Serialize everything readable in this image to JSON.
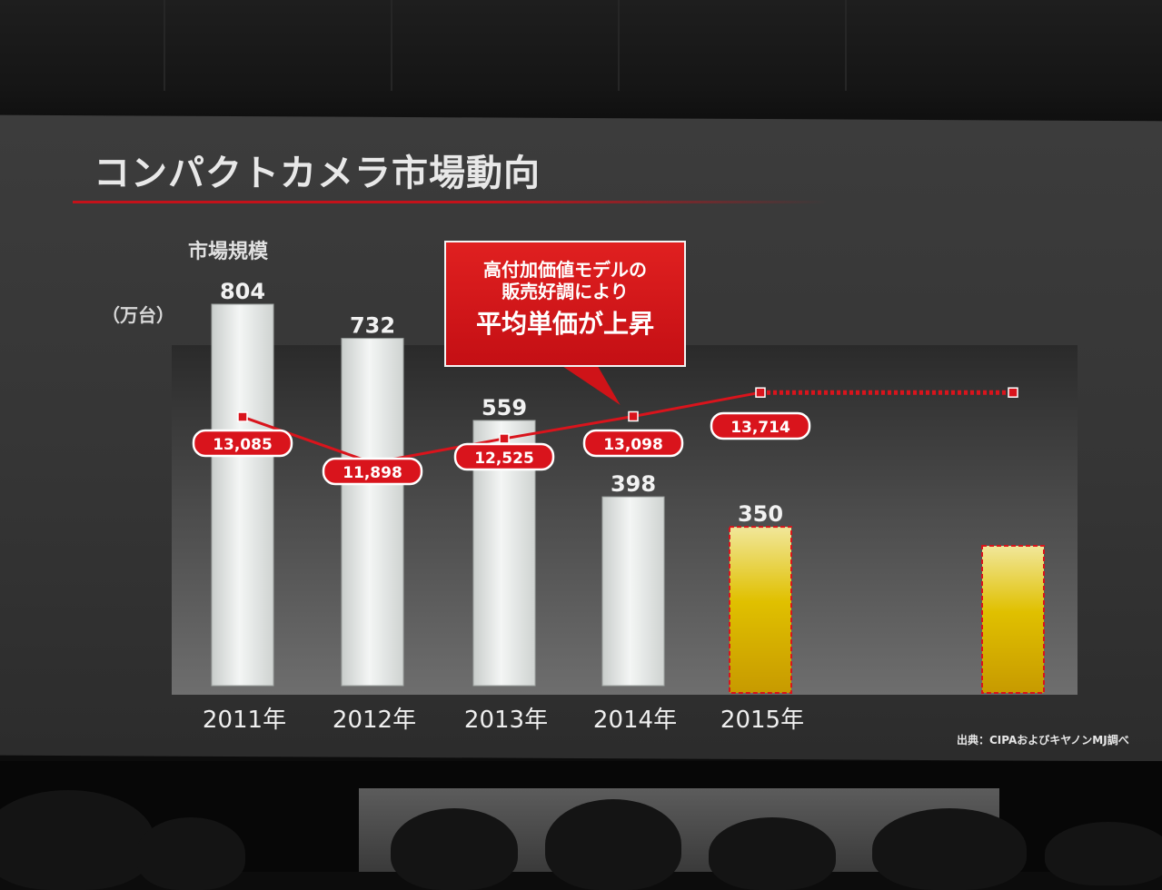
{
  "slide": {
    "title": "コンパクトカメラ市場動向",
    "y_label": "市場規模",
    "y_unit": "（万台）",
    "callout_line1": "高付加価値モデルの",
    "callout_line2": "販売好調により",
    "callout_line3": "平均単価が上昇",
    "source": "出典：CIPAおよびキヤノンMJ調べ"
  },
  "colors": {
    "background": "#353535",
    "bar_actual": "#e9ecea",
    "bar_forecast": "#d8b400",
    "accent_red": "#d9141c"
  },
  "chart_data": {
    "type": "bar",
    "categories": [
      "2011年",
      "2012年",
      "2013年",
      "2014年",
      "2015年",
      ""
    ],
    "series": [
      {
        "values": [
          804,
          732,
          559,
          398,
          350,
          310
        ],
        "value_labels": [
          "804",
          "732",
          "559",
          "398",
          "350",
          ""
        ],
        "forecast": [
          false,
          false,
          false,
          false,
          true,
          true
        ]
      },
      {
        "type": "line",
        "values": [
          13085,
          11898,
          12525,
          13098,
          13714,
          13714
        ],
        "value_labels": [
          "13,085",
          "11,898",
          "12,525",
          "13,098",
          "13,714",
          ""
        ],
        "forecast_dotted_from_index": 4
      }
    ],
    "ylabel": "市場規模",
    "yunit": "（万台）",
    "ylim": [
      0,
      804
    ]
  }
}
